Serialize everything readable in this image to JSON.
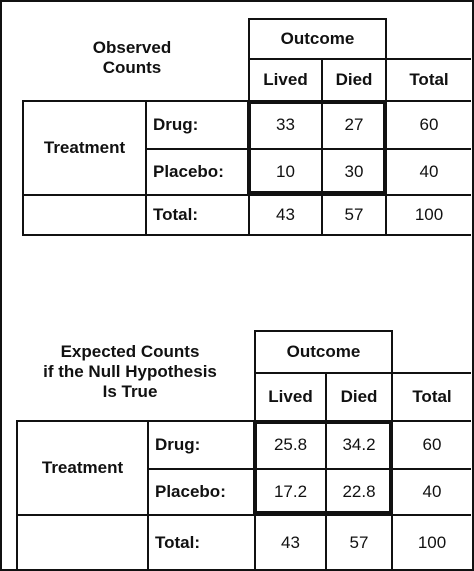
{
  "observed": {
    "title_lines": [
      "Observed",
      "Counts"
    ],
    "outcome_header": "Outcome",
    "col_headers": [
      "Lived",
      "Died",
      "Total"
    ],
    "row_group_label": "Treatment",
    "rows": [
      {
        "label": "Drug:",
        "lived": "33",
        "died": "27",
        "total": "60"
      },
      {
        "label": "Placebo:",
        "lived": "10",
        "died": "30",
        "total": "40"
      },
      {
        "label": "Total:",
        "lived": "43",
        "died": "57",
        "total": "100"
      }
    ]
  },
  "expected": {
    "title_lines": [
      "Expected  Counts",
      "if the Null Hypothesis",
      "Is True"
    ],
    "outcome_header": "Outcome",
    "col_headers": [
      "Lived",
      "Died",
      "Total"
    ],
    "row_group_label": "Treatment",
    "rows": [
      {
        "label": "Drug:",
        "lived": "25.8",
        "died": "34.2",
        "total": "60"
      },
      {
        "label": "Placebo:",
        "lived": "17.2",
        "died": "22.8",
        "total": "40"
      },
      {
        "label": "Total:",
        "lived": "43",
        "died": "57",
        "total": "100"
      }
    ]
  }
}
